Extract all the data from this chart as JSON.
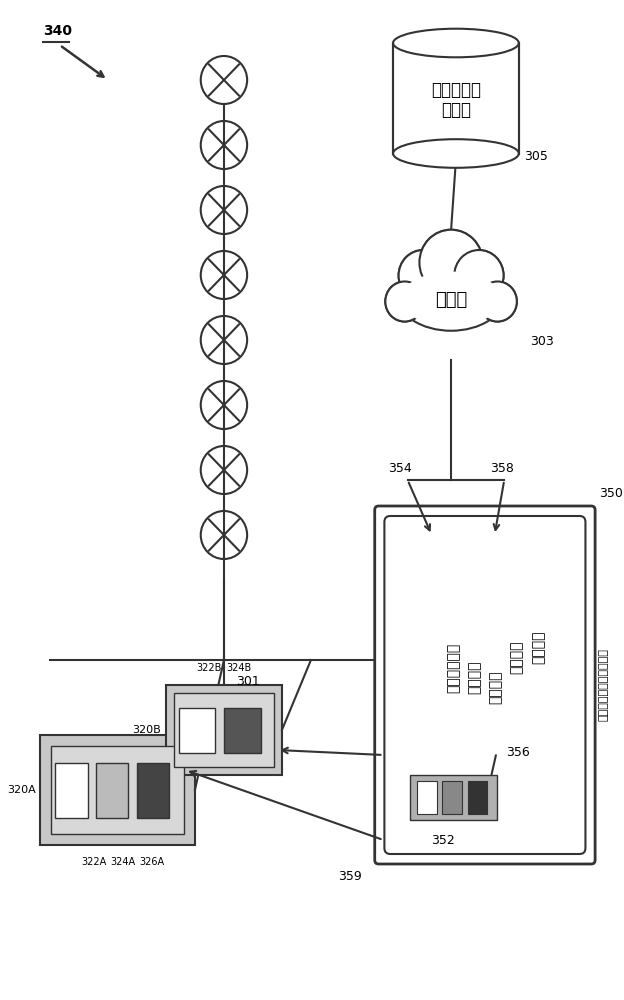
{
  "bg_color": "#ffffff",
  "label_340": "340",
  "label_305": "305",
  "label_303": "303",
  "label_301": "301",
  "label_350": "350",
  "label_354": "354",
  "label_358": "358",
  "label_352": "352",
  "label_356": "356",
  "label_359": "359",
  "label_320A": "320A",
  "label_322A": "322A",
  "label_324A": "324A",
  "label_326A": "326A",
  "label_320B": "320B",
  "label_322B": "322B",
  "label_324B": "324B",
  "db_text": "供应商配置\n数据库",
  "cloud_text": "因特网",
  "mobile_label": "用于场景创建的移动设备",
  "screen_line1": "开启任务照明",
  "screen_line2": "调暗设置",
  "screen_line3": "关闭灯光",
  "screen_line4": "修改场景",
  "screen_line5": "额外功能"
}
